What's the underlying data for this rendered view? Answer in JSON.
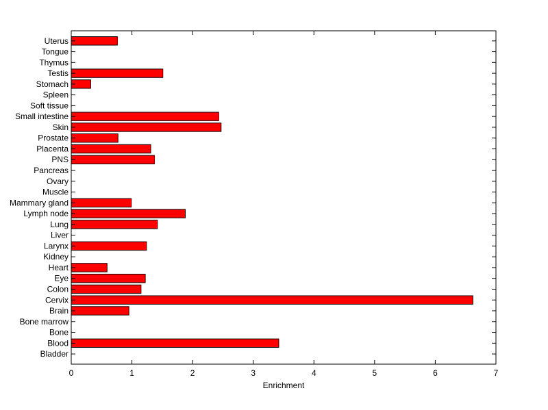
{
  "chart_data": {
    "type": "bar",
    "orientation": "horizontal",
    "xlabel": "Enrichment",
    "ylabel": "",
    "title": "",
    "xlim": [
      0,
      7
    ],
    "xticks": [
      0,
      1,
      2,
      3,
      4,
      5,
      6,
      7
    ],
    "grid": false,
    "categories": [
      "Bladder",
      "Blood",
      "Bone",
      "Bone marrow",
      "Brain",
      "Cervix",
      "Colon",
      "Eye",
      "Heart",
      "Kidney",
      "Larynx",
      "Liver",
      "Lung",
      "Lymph node",
      "Mammary gland",
      "Muscle",
      "Ovary",
      "Pancreas",
      "PNS",
      "Placenta",
      "Prostate",
      "Skin",
      "Small intestine",
      "Soft tissue",
      "Spleen",
      "Stomach",
      "Testis",
      "Thymus",
      "Tongue",
      "Uterus"
    ],
    "values": [
      0,
      3.42,
      0,
      0,
      0.95,
      6.62,
      1.15,
      1.22,
      0.59,
      0,
      1.24,
      0,
      1.42,
      1.88,
      0.99,
      0,
      0,
      0,
      1.37,
      1.31,
      0.77,
      2.47,
      2.43,
      0,
      0,
      0.32,
      1.51,
      0,
      0,
      0.76
    ],
    "bar_color": "#ff0000",
    "bar_edge_color": "#000000"
  }
}
